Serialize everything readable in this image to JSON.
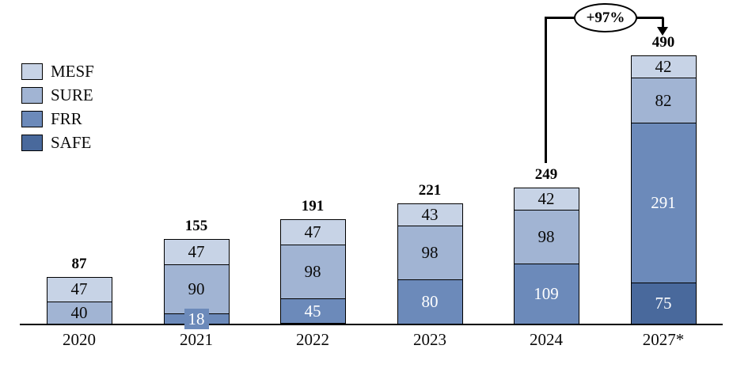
{
  "chart_data": {
    "type": "bar",
    "stacked": true,
    "title": "",
    "xlabel": "",
    "ylabel": "",
    "grid": false,
    "value_axis_visible": false,
    "legend_position": "top-left",
    "categories": [
      "2020",
      "2021",
      "2022",
      "2023",
      "2024",
      "2027*"
    ],
    "series": [
      {
        "name": "MESF",
        "color": "#c7d3e6",
        "text_color": "#0b0b0b",
        "values": [
          47,
          47,
          47,
          43,
          42,
          42
        ]
      },
      {
        "name": "SURE",
        "color": "#a1b4d3",
        "text_color": "#0b0b0b",
        "values": [
          40,
          90,
          98,
          98,
          98,
          82
        ]
      },
      {
        "name": "FRR",
        "color": "#6c8aba",
        "text_color": "#ffffff",
        "values": [
          0,
          18,
          45,
          80,
          109,
          291
        ]
      },
      {
        "name": "SAFE",
        "color": "#49699c",
        "text_color": "#ffffff",
        "values": [
          0,
          0,
          0,
          0,
          0,
          75
        ]
      }
    ],
    "totals": [
      87,
      155,
      191,
      221,
      249,
      490
    ],
    "annotation": {
      "text": "+97%",
      "from_category": "2024",
      "to_category": "2027*"
    }
  },
  "colors": {
    "axis": "#000000",
    "border": "#000000",
    "background": "#ffffff"
  }
}
